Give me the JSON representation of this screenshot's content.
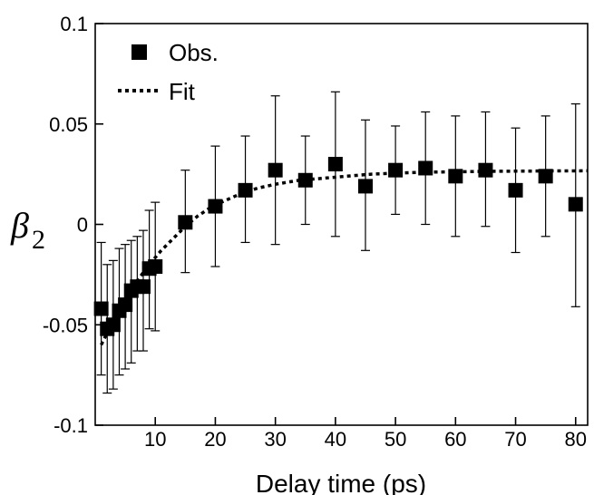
{
  "chart_data": {
    "type": "scatter",
    "xlabel": "Delay time (ps)",
    "ylabel": {
      "main": "β",
      "sub": "2"
    },
    "xlim": [
      0,
      82
    ],
    "ylim": [
      -0.1,
      0.1
    ],
    "x_ticks": [
      10,
      20,
      30,
      40,
      50,
      60,
      70,
      80
    ],
    "y_ticks": [
      -0.1,
      -0.05,
      0,
      0.05,
      0.1
    ],
    "y_tick_labels": [
      "-0.1",
      "-0.05",
      "0",
      "0.05",
      "0.1"
    ],
    "x_tick_labels": [
      "10",
      "20",
      "30",
      "40",
      "50",
      "60",
      "70",
      "80"
    ],
    "legend": {
      "position": "top-left",
      "entries": [
        {
          "label": "Obs.",
          "marker": "square"
        },
        {
          "label": "Fit",
          "marker": "dotted-line"
        }
      ]
    },
    "series": [
      {
        "name": "Obs.",
        "kind": "points-with-error-bars",
        "x": [
          1,
          2,
          3,
          4,
          5,
          6,
          7,
          8,
          9,
          10,
          15,
          20,
          25,
          30,
          35,
          40,
          45,
          50,
          55,
          60,
          65,
          70,
          75,
          80
        ],
        "y": [
          -0.042,
          -0.052,
          -0.05,
          -0.043,
          -0.04,
          -0.033,
          -0.031,
          -0.031,
          -0.022,
          -0.021,
          0.001,
          0.009,
          0.017,
          0.027,
          0.022,
          0.03,
          0.019,
          0.027,
          0.028,
          0.024,
          0.027,
          0.017,
          0.024,
          0.01
        ],
        "err_low": [
          -0.075,
          -0.084,
          -0.082,
          -0.075,
          -0.072,
          -0.069,
          -0.063,
          -0.063,
          -0.052,
          -0.053,
          -0.024,
          -0.021,
          -0.009,
          -0.01,
          0.0,
          -0.006,
          -0.013,
          0.005,
          0.0,
          -0.006,
          -0.001,
          -0.014,
          -0.006,
          -0.041
        ],
        "err_high": [
          -0.009,
          -0.02,
          -0.018,
          -0.012,
          -0.01,
          -0.008,
          -0.006,
          -0.003,
          0.007,
          0.011,
          0.027,
          0.039,
          0.044,
          0.064,
          0.044,
          0.066,
          0.052,
          0.049,
          0.056,
          0.054,
          0.056,
          0.048,
          0.054,
          0.06
        ]
      },
      {
        "name": "Fit",
        "kind": "line",
        "style": "dotted",
        "x": [
          1,
          3,
          5,
          7,
          9,
          11,
          13,
          15,
          17,
          19,
          21,
          24,
          27,
          30,
          34,
          38,
          42,
          46,
          50,
          55,
          60,
          65,
          70,
          75,
          82
        ],
        "y": [
          -0.06,
          -0.048,
          -0.038,
          -0.028,
          -0.02,
          -0.013,
          -0.007,
          -0.001,
          0.004,
          0.008,
          0.011,
          0.015,
          0.018,
          0.02,
          0.022,
          0.023,
          0.024,
          0.025,
          0.0255,
          0.026,
          0.0262,
          0.0264,
          0.0265,
          0.0266,
          0.0267
        ]
      }
    ],
    "colors": {
      "marker": "#000000",
      "fit": "#000000",
      "axes": "#000000"
    }
  }
}
